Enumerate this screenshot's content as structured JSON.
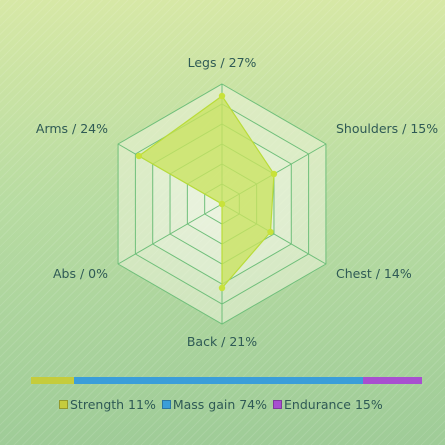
{
  "chart_data": [
    {
      "type": "radar",
      "axes": [
        "Legs / 27%",
        "Shoulders / 15%",
        "Chest / 14%",
        "Back / 21%",
        "Abs / 0%",
        "Arms / 24%"
      ],
      "values": [
        27,
        15,
        14,
        21,
        0,
        24
      ],
      "rmax": 30,
      "grid_levels": 6,
      "colors": {
        "fill": "#c9e35f",
        "stroke": "#b9dc3a",
        "point": "#c8e23a",
        "grid": "#6fbf7a",
        "grid_fill": "#eef4da"
      }
    },
    {
      "type": "stacked-bar",
      "categories": [
        "Strength 11%",
        "Mass gain 74%",
        "Endurance 15%"
      ],
      "values": [
        11,
        74,
        15
      ],
      "colors": [
        "#c5cc3c",
        "#3b9ed9",
        "#a84fd0"
      ]
    }
  ]
}
